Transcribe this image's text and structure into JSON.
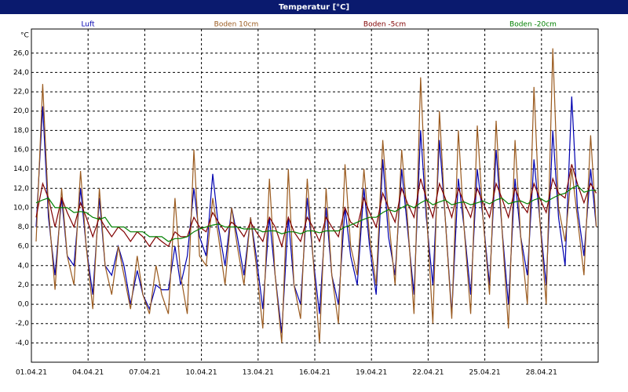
{
  "chart_data": {
    "type": "line",
    "title": "Temperatur [°C]",
    "y_label": "°C",
    "x": [
      0.25,
      0.6,
      0.9,
      1.25,
      1.6,
      1.9,
      2.25,
      2.6,
      2.9,
      3.25,
      3.6,
      3.9,
      4.25,
      4.6,
      4.9,
      5.25,
      5.6,
      5.9,
      6.25,
      6.6,
      6.9,
      7.25,
      7.6,
      7.9,
      8.25,
      8.6,
      8.9,
      9.25,
      9.6,
      9.9,
      10.25,
      10.6,
      10.9,
      11.25,
      11.6,
      11.9,
      12.25,
      12.6,
      12.9,
      13.25,
      13.6,
      13.9,
      14.25,
      14.6,
      14.9,
      15.25,
      15.6,
      15.9,
      16.25,
      16.6,
      16.9,
      17.25,
      17.6,
      17.9,
      18.25,
      18.6,
      18.9,
      19.25,
      19.6,
      19.9,
      20.25,
      20.6,
      20.9,
      21.25,
      21.6,
      21.9,
      22.25,
      22.6,
      22.9,
      23.25,
      23.6,
      23.9,
      24.25,
      24.6,
      24.9,
      25.25,
      25.6,
      25.9,
      26.25,
      26.6,
      26.9,
      27.25,
      27.6,
      27.9,
      28.25,
      28.6,
      28.9,
      29.25,
      29.6,
      29.9
    ],
    "series": [
      {
        "name": "Luft",
        "color": "#0000b0",
        "values": [
          8,
          20.5,
          9,
          3,
          11,
          5,
          4,
          12,
          6,
          1,
          11,
          4,
          3,
          6,
          4,
          0,
          3.5,
          1,
          -0.5,
          2,
          1.5,
          1.5,
          6,
          2,
          5,
          12,
          7,
          5,
          13.5,
          8,
          4,
          10,
          7,
          3,
          9,
          5,
          -0.5,
          9,
          3,
          -3,
          9,
          2,
          0,
          11,
          5,
          -1,
          10,
          3,
          0,
          10,
          5,
          2,
          12,
          6,
          1,
          15,
          7,
          3,
          14,
          8,
          1,
          18,
          9,
          2,
          17,
          9,
          -1,
          13,
          8,
          1,
          14,
          9,
          2,
          16,
          8,
          0,
          13,
          7,
          3,
          15,
          9,
          2,
          18,
          9,
          4,
          21.5,
          10,
          5,
          14,
          8
        ]
      },
      {
        "name": "Boden 10cm",
        "color": "#9a5a1e",
        "values": [
          6.5,
          22.8,
          10,
          1.5,
          12,
          5,
          2,
          13.8,
          6,
          -0.5,
          12,
          4,
          1,
          6,
          3,
          -0.5,
          5,
          1,
          -1,
          4,
          1,
          -1,
          11,
          3,
          -1,
          16,
          5,
          4,
          11,
          7,
          2,
          10,
          6,
          2,
          9,
          4,
          -2.5,
          13,
          3,
          -4,
          14,
          2,
          -1.5,
          13,
          5,
          -4,
          12,
          3,
          -2,
          14.5,
          6,
          3,
          14,
          7,
          2,
          17,
          9,
          2,
          16,
          9,
          -1,
          23.5,
          10,
          -2,
          20,
          9,
          -1.5,
          18,
          8,
          -1,
          18.5,
          9,
          1,
          19,
          8,
          -2.5,
          17,
          7,
          0,
          22.5,
          9,
          0,
          26.5,
          10,
          6.5,
          14,
          9,
          3,
          17.5,
          8
        ]
      },
      {
        "name": "Boden -5cm",
        "color": "#800000",
        "values": [
          9,
          12.5,
          11,
          8,
          11,
          9.5,
          8,
          10.5,
          9,
          7,
          9,
          8,
          7,
          8,
          7.5,
          6.5,
          7.5,
          7,
          6,
          7,
          6.5,
          6,
          7.5,
          7,
          7,
          9,
          8,
          7.5,
          9.5,
          8.5,
          7.5,
          8.5,
          8,
          7,
          8.5,
          7.5,
          6.5,
          9,
          8,
          6,
          9,
          7.5,
          6.5,
          9,
          8,
          6.5,
          9,
          8,
          7,
          10,
          8.5,
          8,
          11,
          9.5,
          8,
          11.5,
          10,
          8.5,
          12,
          10.5,
          9,
          13,
          11,
          9,
          12.5,
          11,
          9,
          12,
          10.5,
          9,
          12,
          10.5,
          9,
          12.5,
          11,
          9,
          12,
          10.5,
          9.5,
          12.5,
          11,
          9.5,
          13,
          11.5,
          11,
          14.5,
          12.5,
          10.5,
          12.5,
          11.5
        ]
      },
      {
        "name": "Boden -20cm",
        "color": "#008000",
        "values": [
          10.5,
          10.8,
          11,
          10,
          10,
          10,
          9.5,
          9.6,
          9.5,
          9,
          8.8,
          9,
          8,
          8,
          8,
          7.5,
          7.5,
          7.5,
          7,
          7,
          7,
          6.5,
          6.8,
          6.8,
          7,
          7.5,
          7.8,
          8,
          8.2,
          8.3,
          8,
          8,
          8,
          7.8,
          7.8,
          7.8,
          7.5,
          7.6,
          7.6,
          7.3,
          7.5,
          7.5,
          7.3,
          7.6,
          7.6,
          7.4,
          7.6,
          7.6,
          7.6,
          8,
          8.2,
          8.5,
          8.8,
          9,
          9,
          9.5,
          9.8,
          9.6,
          10,
          10.3,
          10,
          10.5,
          10.8,
          10.3,
          10.6,
          10.8,
          10.3,
          10.5,
          10.6,
          10.3,
          10.5,
          10.7,
          10.4,
          10.8,
          11,
          10.4,
          10.6,
          10.7,
          10.4,
          10.8,
          11,
          10.6,
          11,
          11.3,
          11.5,
          12,
          12.3,
          11.6,
          11.8,
          11.8
        ]
      }
    ],
    "xlim": [
      0,
      30
    ],
    "xticks": [
      {
        "value": 0,
        "label": "01.04.21"
      },
      {
        "value": 3,
        "label": "04.04.21"
      },
      {
        "value": 6,
        "label": "07.04.21"
      },
      {
        "value": 9,
        "label": "10.04.21"
      },
      {
        "value": 12,
        "label": "13.04.21"
      },
      {
        "value": 15,
        "label": "16.04.21"
      },
      {
        "value": 18,
        "label": "19.04.21"
      },
      {
        "value": 21,
        "label": "22.04.21"
      },
      {
        "value": 24,
        "label": "25.04.21"
      },
      {
        "value": 27,
        "label": "28.04.21"
      }
    ],
    "ylim": [
      -6,
      28.5
    ],
    "yticks": [
      {
        "value": -4,
        "label": "-4,0"
      },
      {
        "value": -2,
        "label": "-2,0"
      },
      {
        "value": 0,
        "label": "0,0"
      },
      {
        "value": 2,
        "label": "2,0"
      },
      {
        "value": 4,
        "label": "4,0"
      },
      {
        "value": 6,
        "label": "6,0"
      },
      {
        "value": 8,
        "label": "8,0"
      },
      {
        "value": 10,
        "label": "10,0"
      },
      {
        "value": 12,
        "label": "12,0"
      },
      {
        "value": 14,
        "label": "14,0"
      },
      {
        "value": 16,
        "label": "16,0"
      },
      {
        "value": 18,
        "label": "18,0"
      },
      {
        "value": 20,
        "label": "20,0"
      },
      {
        "value": 22,
        "label": "22,0"
      },
      {
        "value": 24,
        "label": "24,0"
      },
      {
        "value": 26,
        "label": "26,0"
      }
    ],
    "grid": true
  }
}
